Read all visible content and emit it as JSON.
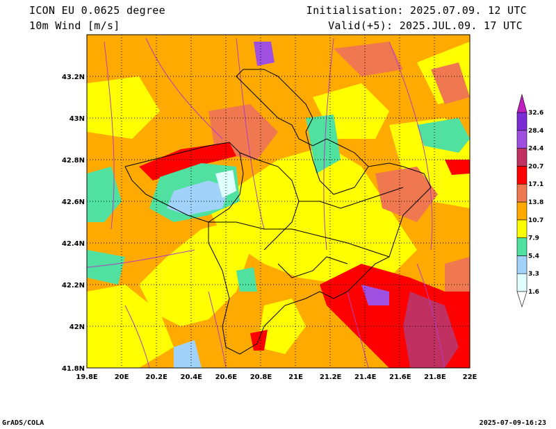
{
  "header": {
    "model": "ICON EU 0.0625 degree",
    "variable": "10m Wind [m/s]",
    "init": "Initialisation: 2025.07.09. 12 UTC",
    "valid": "Valid(+5): 2025.JUL.09. 17 UTC"
  },
  "map": {
    "lon_ticks": [
      "19.8E",
      "20E",
      "20.2E",
      "20.4E",
      "20.6E",
      "20.8E",
      "21E",
      "21.2E",
      "21.4E",
      "21.6E",
      "21.8E",
      "22E"
    ],
    "lat_ticks": [
      "41.8N",
      "42N",
      "42.2N",
      "42.4N",
      "42.6N",
      "42.8N",
      "43N",
      "43.2N"
    ],
    "lon_range": [
      19.8,
      22.0
    ],
    "lat_range": [
      41.8,
      43.4
    ]
  },
  "colorbar": {
    "labels": [
      "1.6",
      "3.3",
      "5.4",
      "7.9",
      "10.7",
      "13.8",
      "17.1",
      "20.7",
      "24.4",
      "28.4",
      "32.6"
    ],
    "colors": [
      "#e0ffff",
      "#a0d2fa",
      "#50e0a0",
      "#ffff00",
      "#ffaa00",
      "#f07850",
      "#ff0000",
      "#c03060",
      "#a050e0",
      "#7b2cd4",
      "#c020c0"
    ]
  },
  "footer": {
    "left": "GrADS/COLA",
    "right": "2025-07-09-16:23"
  }
}
